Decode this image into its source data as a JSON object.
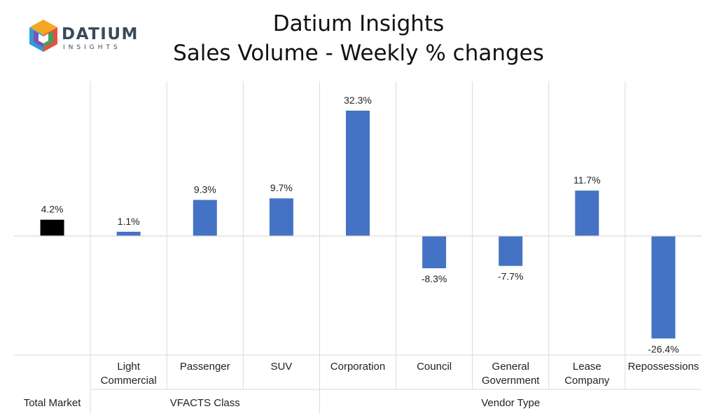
{
  "brand": {
    "name": "DATIUM",
    "sub": "INSIGHTS"
  },
  "header": {
    "title": "Datium Insights",
    "subtitle": "Sales Volume - Weekly % changes"
  },
  "chart_data": {
    "type": "bar",
    "title": "Datium Insights",
    "subtitle": "Sales Volume - Weekly % changes",
    "unit": "%",
    "ylim": [
      -30,
      38
    ],
    "categories": [
      [
        "Total Market"
      ],
      [
        "Light",
        "Commercial"
      ],
      [
        "Passenger"
      ],
      [
        "SUV"
      ],
      [
        "Corporation"
      ],
      [
        "Council"
      ],
      [
        "General",
        "Government"
      ],
      [
        "Lease",
        "Company"
      ],
      [
        "Repossessions"
      ]
    ],
    "values": [
      4.2,
      1.1,
      9.3,
      9.7,
      32.3,
      -8.3,
      -7.7,
      11.7,
      -26.4
    ],
    "data_labels": [
      "4.2%",
      "1.1%",
      "9.3%",
      "9.7%",
      "32.3%",
      "-8.3%",
      "-7.7%",
      "11.7%",
      "-26.4%"
    ],
    "groups": [
      {
        "label": "Total Market",
        "start": 0,
        "end": 0
      },
      {
        "label": "VFACTS Class",
        "start": 1,
        "end": 3
      },
      {
        "label": "Vendor Type",
        "start": 4,
        "end": 8
      }
    ],
    "colors": {
      "highlight": "#000000",
      "bar": "#4472C4",
      "grid": "#d9d9d9"
    },
    "legend": "none",
    "grid": true
  }
}
